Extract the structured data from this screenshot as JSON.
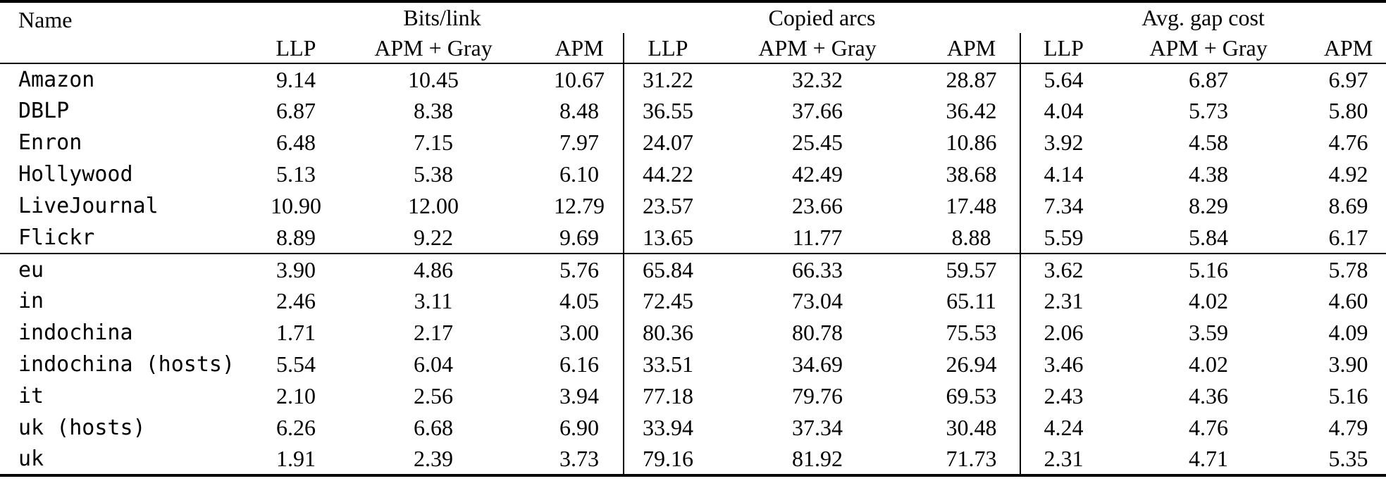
{
  "table": {
    "name_header": "Name",
    "groups": [
      {
        "label": "Bits/link",
        "columns": [
          "LLP",
          "APM + Gray",
          "APM"
        ]
      },
      {
        "label": "Copied arcs",
        "columns": [
          "LLP",
          "APM + Gray",
          "APM"
        ]
      },
      {
        "label": "Avg. gap cost",
        "columns": [
          "LLP",
          "APM + Gray",
          "APM"
        ]
      }
    ],
    "sections": [
      {
        "rows": [
          {
            "name": "Amazon",
            "values": [
              "9.14",
              "10.45",
              "10.67",
              "31.22",
              "32.32",
              "28.87",
              "5.64",
              "6.87",
              "6.97"
            ]
          },
          {
            "name": "DBLP",
            "values": [
              "6.87",
              "8.38",
              "8.48",
              "36.55",
              "37.66",
              "36.42",
              "4.04",
              "5.73",
              "5.80"
            ]
          },
          {
            "name": "Enron",
            "values": [
              "6.48",
              "7.15",
              "7.97",
              "24.07",
              "25.45",
              "10.86",
              "3.92",
              "4.58",
              "4.76"
            ]
          },
          {
            "name": "Hollywood",
            "values": [
              "5.13",
              "5.38",
              "6.10",
              "44.22",
              "42.49",
              "38.68",
              "4.14",
              "4.38",
              "4.92"
            ]
          },
          {
            "name": "LiveJournal",
            "values": [
              "10.90",
              "12.00",
              "12.79",
              "23.57",
              "23.66",
              "17.48",
              "7.34",
              "8.29",
              "8.69"
            ]
          },
          {
            "name": "Flickr",
            "values": [
              "8.89",
              "9.22",
              "9.69",
              "13.65",
              "11.77",
              "8.88",
              "5.59",
              "5.84",
              "6.17"
            ]
          }
        ]
      },
      {
        "rows": [
          {
            "name": "eu",
            "values": [
              "3.90",
              "4.86",
              "5.76",
              "65.84",
              "66.33",
              "59.57",
              "3.62",
              "5.16",
              "5.78"
            ]
          },
          {
            "name": "in",
            "values": [
              "2.46",
              "3.11",
              "4.05",
              "72.45",
              "73.04",
              "65.11",
              "2.31",
              "4.02",
              "4.60"
            ]
          },
          {
            "name": "indochina",
            "values": [
              "1.71",
              "2.17",
              "3.00",
              "80.36",
              "80.78",
              "75.53",
              "2.06",
              "3.59",
              "4.09"
            ]
          },
          {
            "name": "indochina (hosts)",
            "values": [
              "5.54",
              "6.04",
              "6.16",
              "33.51",
              "34.69",
              "26.94",
              "3.46",
              "4.02",
              "3.90"
            ]
          },
          {
            "name": "it",
            "values": [
              "2.10",
              "2.56",
              "3.94",
              "77.18",
              "79.76",
              "69.53",
              "2.43",
              "4.36",
              "5.16"
            ]
          },
          {
            "name": "uk (hosts)",
            "values": [
              "6.26",
              "6.68",
              "6.90",
              "33.94",
              "37.34",
              "30.48",
              "4.24",
              "4.76",
              "4.79"
            ]
          },
          {
            "name": "uk",
            "values": [
              "1.91",
              "2.39",
              "3.73",
              "79.16",
              "81.92",
              "71.73",
              "2.31",
              "4.71",
              "5.35"
            ]
          }
        ]
      }
    ]
  }
}
